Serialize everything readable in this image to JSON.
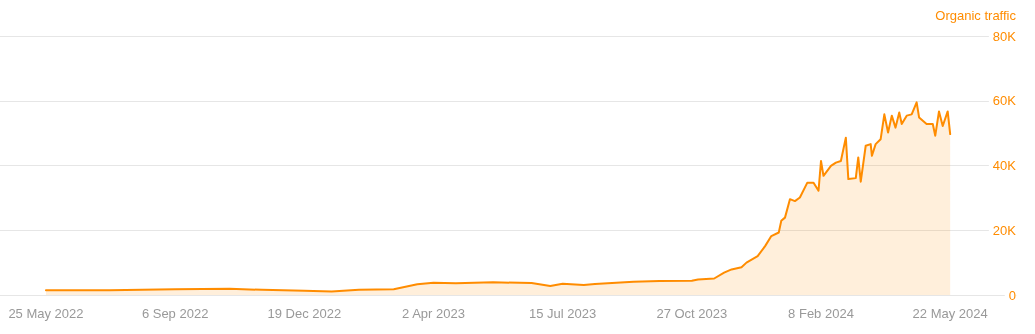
{
  "chart_data": {
    "type": "area",
    "ylabel": "Organic traffic",
    "grid": "y",
    "marker": "none",
    "line_style": "solid",
    "xlim": [
      "2022-04-18",
      "2024-07-14"
    ],
    "xticks": [
      {
        "value": "2022-05-25",
        "label": "25 May 2022"
      },
      {
        "value": "2022-09-06",
        "label": "6 Sep 2022"
      },
      {
        "value": "2022-12-19",
        "label": "19 Dec 2022"
      },
      {
        "value": "2023-04-02",
        "label": "2 Apr 2023"
      },
      {
        "value": "2023-07-15",
        "label": "15 Jul 2023"
      },
      {
        "value": "2023-10-27",
        "label": "27 Oct 2023"
      },
      {
        "value": "2024-02-08",
        "label": "8 Feb 2024"
      },
      {
        "value": "2024-05-22",
        "label": "22 May 2024"
      }
    ],
    "ylim": [
      0,
      80000
    ],
    "yticks": [
      {
        "value": 0,
        "label": "0"
      },
      {
        "value": 20000,
        "label": "20K"
      },
      {
        "value": 40000,
        "label": "40K"
      },
      {
        "value": 60000,
        "label": "60K"
      },
      {
        "value": 80000,
        "label": "80K"
      }
    ],
    "x": [
      "2022-05-25",
      "2022-07-15",
      "2022-09-06",
      "2022-10-20",
      "2022-11-15",
      "2022-12-19",
      "2023-01-10",
      "2023-02-01",
      "2023-03-01",
      "2023-03-20",
      "2023-04-02",
      "2023-04-20",
      "2023-05-20",
      "2023-06-20",
      "2023-07-05",
      "2023-07-15",
      "2023-08-01",
      "2023-08-10",
      "2023-09-10",
      "2023-10-01",
      "2023-10-27",
      "2023-11-01",
      "2023-11-14",
      "2023-11-22",
      "2023-11-28",
      "2023-12-06",
      "2023-12-10",
      "2023-12-19",
      "2023-12-25",
      "2023-12-30",
      "2024-01-05",
      "2024-01-07",
      "2024-01-10",
      "2024-01-14",
      "2024-01-18",
      "2024-01-22",
      "2024-01-28",
      "2024-02-02",
      "2024-02-06",
      "2024-02-08",
      "2024-02-10",
      "2024-02-16",
      "2024-02-20",
      "2024-02-24",
      "2024-02-28",
      "2024-03-01",
      "2024-03-07",
      "2024-03-09",
      "2024-03-11",
      "2024-03-15",
      "2024-03-19",
      "2024-03-20",
      "2024-03-23",
      "2024-03-27",
      "2024-03-30",
      "2024-04-02",
      "2024-04-05",
      "2024-04-08",
      "2024-04-11",
      "2024-04-13",
      "2024-04-17",
      "2024-04-21",
      "2024-04-25",
      "2024-04-27",
      "2024-05-03",
      "2024-05-08",
      "2024-05-10",
      "2024-05-13",
      "2024-05-16",
      "2024-05-20",
      "2024-05-22"
    ],
    "series": [
      {
        "color": "#ff8c00",
        "values": [
          1500,
          1500,
          1800,
          1900,
          1600,
          1300,
          1100,
          1600,
          1800,
          3300,
          3800,
          3600,
          3900,
          3700,
          2800,
          3500,
          3100,
          3400,
          4100,
          4300,
          4400,
          4800,
          5100,
          6900,
          7900,
          8600,
          10000,
          12000,
          15100,
          18200,
          19300,
          22900,
          23900,
          29600,
          29000,
          30100,
          34700,
          34700,
          32200,
          41400,
          36800,
          39900,
          40900,
          41400,
          48600,
          35800,
          36100,
          42500,
          35000,
          46100,
          46600,
          43000,
          46600,
          48100,
          55800,
          50200,
          55400,
          51700,
          56400,
          52800,
          55400,
          55800,
          59500,
          54800,
          52800,
          52800,
          49200,
          56700,
          52200,
          56700,
          49700
        ]
      }
    ]
  }
}
